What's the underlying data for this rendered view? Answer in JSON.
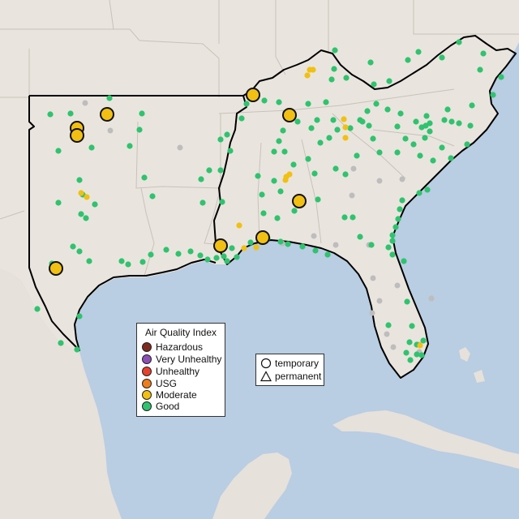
{
  "legend": {
    "title": "Air Quality Index",
    "items": [
      {
        "label": "Hazardous",
        "color": "#7e2a1e"
      },
      {
        "label": "Very Unhealthy",
        "color": "#8e4fb5"
      },
      {
        "label": "Unhealthy",
        "color": "#e8402f"
      },
      {
        "label": "USG",
        "color": "#f07d1b"
      },
      {
        "label": "Moderate",
        "color": "#f1c012"
      },
      {
        "label": "Good",
        "color": "#2fc36e"
      }
    ]
  },
  "shape_legend": {
    "items": [
      {
        "label": "temporary",
        "shape": "circle-icon"
      },
      {
        "label": "permanent",
        "shape": "triangle-icon"
      }
    ]
  },
  "colors": {
    "ocean": "#b9cde3",
    "land": "#e9e5de",
    "mexico_land": "#e6e1da",
    "border": "#c7c2ba",
    "outline": "#000000",
    "good": "#2fc36e",
    "moderate": "#f1c012",
    "no_data": "#bdbdbd"
  },
  "stations": {
    "moderate_major": 9,
    "moderate_minor": 13,
    "good": 150,
    "gray": 20
  }
}
